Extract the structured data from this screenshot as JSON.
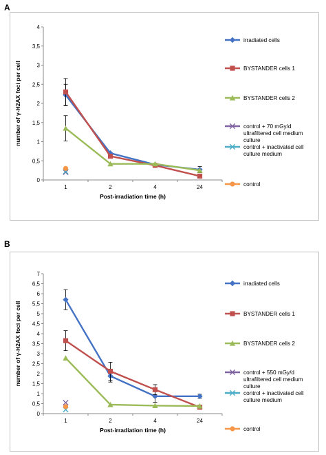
{
  "panels": [
    {
      "letter": "A",
      "chart_data": {
        "type": "line",
        "categories": [
          "1",
          "2",
          "4",
          "24"
        ],
        "xlabel": "Post-irradiation time (h)",
        "ylabel": "number of γ-H2AX foci per cell",
        "ylim": [
          0,
          4
        ],
        "ytick_labels": [
          "0",
          "0,5",
          "1",
          "1,5",
          "2",
          "2,5",
          "3",
          "3,5",
          "4"
        ],
        "legend_position": "right",
        "series": [
          {
            "name": "irradiated cells",
            "color": "#4472c4",
            "marker": "diamond",
            "values": [
              2.22,
              0.7,
              0.4,
              0.27
            ],
            "err": [
              0.28,
              0,
              0,
              0.08
            ]
          },
          {
            "name": "BYSTANDER cells 1",
            "color": "#c0504d",
            "marker": "square",
            "values": [
              2.3,
              0.62,
              0.38,
              0.1
            ],
            "err": [
              0.35,
              0,
              0,
              0
            ]
          },
          {
            "name": "BYSTANDER cells 2",
            "color": "#9bbb59",
            "marker": "triangle",
            "values": [
              1.35,
              0.42,
              0.42,
              0.25
            ],
            "err": [
              0.33,
              0,
              0,
              0
            ]
          },
          {
            "name": "control + 70 mGy/d ultrafiltered cell medium culture",
            "color": "#8064a2",
            "marker": "x",
            "values": [
              0.2,
              null,
              null,
              null
            ],
            "err": [
              0,
              0,
              0,
              0
            ]
          },
          {
            "name": "control + inactivated cell culture medium",
            "color": "#4bacc6",
            "marker": "x",
            "values": [
              0.22,
              null,
              null,
              null
            ],
            "err": [
              0,
              0,
              0,
              0
            ]
          },
          {
            "name": "control",
            "color": "#f79646",
            "marker": "circle",
            "values": [
              0.3,
              null,
              null,
              null
            ],
            "err": [
              0,
              0,
              0,
              0
            ]
          }
        ]
      }
    },
    {
      "letter": "B",
      "chart_data": {
        "type": "line",
        "categories": [
          "1",
          "2",
          "4",
          "24"
        ],
        "xlabel": "Post-irradiation time (h)",
        "ylabel": "number of γ-H2AX foci per cell",
        "ylim": [
          0,
          7
        ],
        "ytick_labels": [
          "0",
          "0,5",
          "1",
          "1,5",
          "2",
          "2,5",
          "3",
          "3,5",
          "4",
          "4,5",
          "5",
          "5,5",
          "6",
          "6,5",
          "7"
        ],
        "legend_position": "right",
        "series": [
          {
            "name": "irradiated cells",
            "color": "#4472c4",
            "marker": "diamond",
            "values": [
              5.7,
              1.88,
              0.87,
              0.87
            ],
            "err": [
              0.5,
              0.3,
              0.3,
              0.1
            ]
          },
          {
            "name": "BYSTANDER cells 1",
            "color": "#c0504d",
            "marker": "square",
            "values": [
              3.65,
              2.12,
              1.2,
              0.32
            ],
            "err": [
              0.5,
              0.45,
              0.25,
              0
            ]
          },
          {
            "name": "BYSTANDER cells 2",
            "color": "#9bbb59",
            "marker": "triangle",
            "values": [
              2.78,
              0.45,
              0.4,
              0.38
            ],
            "err": [
              0,
              0,
              0,
              0
            ]
          },
          {
            "name": "control + 550 mGy/d ultrafiltered cell medium culture",
            "color": "#8064a2",
            "marker": "x",
            "values": [
              0.55,
              null,
              null,
              null
            ],
            "err": [
              0,
              0,
              0,
              0
            ]
          },
          {
            "name": "control + inactivated cell culture medium",
            "color": "#4bacc6",
            "marker": "x",
            "values": [
              0.2,
              null,
              null,
              null
            ],
            "err": [
              0,
              0,
              0,
              0
            ]
          },
          {
            "name": "control",
            "color": "#f79646",
            "marker": "circle",
            "values": [
              0.35,
              null,
              null,
              null
            ],
            "err": [
              0,
              0,
              0,
              0
            ]
          }
        ]
      }
    }
  ]
}
